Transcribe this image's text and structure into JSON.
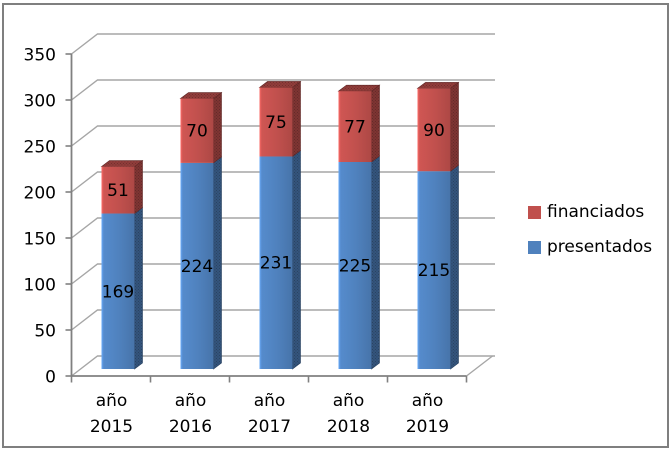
{
  "chart_data": {
    "type": "bar",
    "variant": "3d-stacked-column",
    "title": "",
    "xlabel": "",
    "ylabel": "",
    "categories": [
      "año 2015",
      "año 2016",
      "año 2017",
      "año 2018",
      "año 2019"
    ],
    "series": [
      {
        "name": "presentados",
        "color": "#4F81BD",
        "values": [
          169,
          224,
          231,
          225,
          215
        ]
      },
      {
        "name": "financiados",
        "color": "#C0504D",
        "values": [
          51,
          70,
          75,
          77,
          90
        ]
      }
    ],
    "stacked": true,
    "data_labels": true,
    "ylim": [
      0,
      350
    ],
    "ytick_step": 50,
    "yticks": [
      0,
      50,
      100,
      150,
      200,
      250,
      300,
      350
    ],
    "grid": true,
    "legend": {
      "position": "right",
      "items": [
        {
          "label": "financiados",
          "color": "#C0504D"
        },
        {
          "label": "presentados",
          "color": "#4F81BD"
        }
      ]
    },
    "colors": {
      "axis": "#808080",
      "gridline": "#A6A6A6",
      "label": "#000000",
      "frame_border": "#7F7F7F",
      "background": "#FFFFFF"
    }
  }
}
